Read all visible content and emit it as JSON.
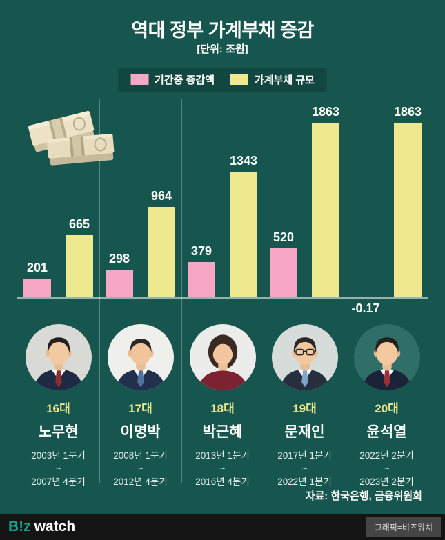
{
  "title": "역대 정부 가계부채 증감",
  "subtitle": "[단위: 조원]",
  "tilde": "~",
  "colors": {
    "background": "#16564f",
    "change_bar": "#f7a7c6",
    "total_bar": "#eee88e",
    "logo_accent": "#19a08c"
  },
  "legend": {
    "items": [
      {
        "label": "기간중 증감액",
        "color": "#f7a7c6"
      },
      {
        "label": "가계부채 규모",
        "color": "#eee88e"
      }
    ]
  },
  "chart_data": {
    "type": "bar",
    "title": "역대 정부 가계부채 증감",
    "unit_label": "[단위: 조원]",
    "categories": [
      "노무현",
      "이명박",
      "박근혜",
      "문재인",
      "윤석열"
    ],
    "series": [
      {
        "name": "기간중 증감액",
        "values": [
          201,
          298,
          379,
          520,
          -0.17
        ]
      },
      {
        "name": "가계부채 규모",
        "values": [
          665,
          964,
          1343,
          1863,
          1863
        ]
      }
    ],
    "ylim": [
      0,
      1863
    ],
    "legend_position": "top",
    "grid": false
  },
  "panels": [
    {
      "change": "201",
      "total": "665",
      "gen": "16대",
      "name": "노무현",
      "term_start": "2003년 1분기",
      "term_end": "2007년 4분기"
    },
    {
      "change": "298",
      "total": "964",
      "gen": "17대",
      "name": "이명박",
      "term_start": "2008년 1분기",
      "term_end": "2012년 4분기"
    },
    {
      "change": "379",
      "total": "1343",
      "gen": "18대",
      "name": "박근혜",
      "term_start": "2013년 1분기",
      "term_end": "2016년 4분기"
    },
    {
      "change": "520",
      "total": "1863",
      "gen": "19대",
      "name": "문재인",
      "term_start": "2017년 1분기",
      "term_end": "2022년 1분기"
    },
    {
      "change": "-0.17",
      "total": "1863",
      "gen": "20대",
      "name": "윤석열",
      "term_start": "2022년 2분기",
      "term_end": "2023년 2분기"
    }
  ],
  "source": "자료: 한국은행, 금융위원회",
  "footer": {
    "logo_primary": "B!z",
    "logo_secondary": "watch",
    "credit": "그래픽=비즈워치"
  }
}
